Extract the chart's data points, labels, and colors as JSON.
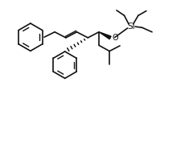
{
  "bg_color": "#ffffff",
  "line_color": "#111111",
  "lw": 1.2,
  "figsize": [
    2.4,
    1.79
  ],
  "dpi": 100,
  "xlim": [
    0,
    10
  ],
  "ylim": [
    0,
    7.46
  ]
}
